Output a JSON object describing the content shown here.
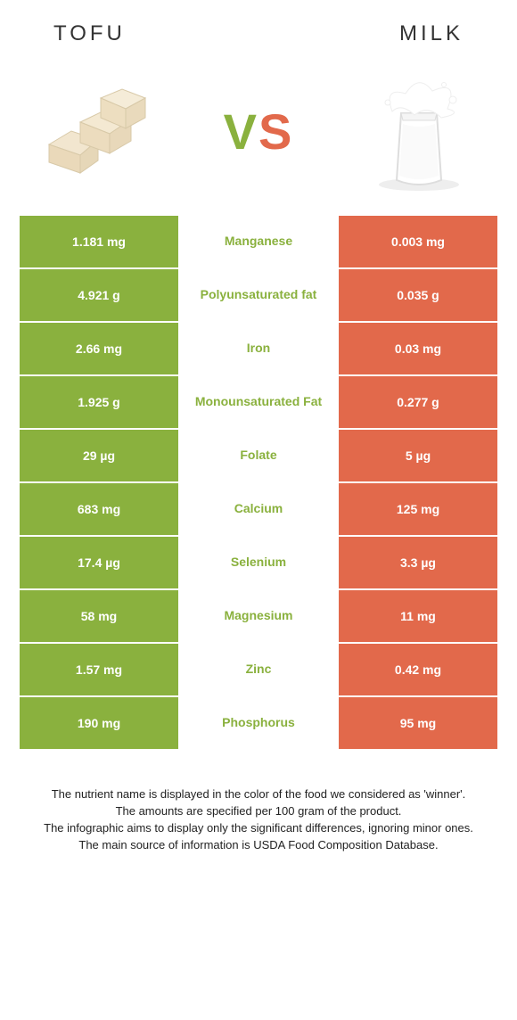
{
  "header": {
    "left_title": "TOFU",
    "right_title": "MILK"
  },
  "vs": {
    "v": "V",
    "s": "S"
  },
  "colors": {
    "left_bg": "#8ab13e",
    "right_bg": "#e2694b",
    "left_text": "#8ab13e",
    "right_text": "#e2694b"
  },
  "rows": [
    {
      "left": "1.181 mg",
      "label": "Manganese",
      "right": "0.003 mg",
      "winner": "left"
    },
    {
      "left": "4.921 g",
      "label": "Polyunsaturated fat",
      "right": "0.035 g",
      "winner": "left"
    },
    {
      "left": "2.66 mg",
      "label": "Iron",
      "right": "0.03 mg",
      "winner": "left"
    },
    {
      "left": "1.925 g",
      "label": "Monounsaturated Fat",
      "right": "0.277 g",
      "winner": "left"
    },
    {
      "left": "29 µg",
      "label": "Folate",
      "right": "5 µg",
      "winner": "left"
    },
    {
      "left": "683 mg",
      "label": "Calcium",
      "right": "125 mg",
      "winner": "left"
    },
    {
      "left": "17.4 µg",
      "label": "Selenium",
      "right": "3.3 µg",
      "winner": "left"
    },
    {
      "left": "58 mg",
      "label": "Magnesium",
      "right": "11 mg",
      "winner": "left"
    },
    {
      "left": "1.57 mg",
      "label": "Zinc",
      "right": "0.42 mg",
      "winner": "left"
    },
    {
      "left": "190 mg",
      "label": "Phosphorus",
      "right": "95 mg",
      "winner": "left"
    }
  ],
  "footer": {
    "line1": "The nutrient name is displayed in the color of the food we considered as 'winner'.",
    "line2": "The amounts are specified per 100 gram of the product.",
    "line3": "The infographic aims to display only the significant differences, ignoring minor ones.",
    "line4": "The main source of information is USDA Food Composition Database."
  }
}
